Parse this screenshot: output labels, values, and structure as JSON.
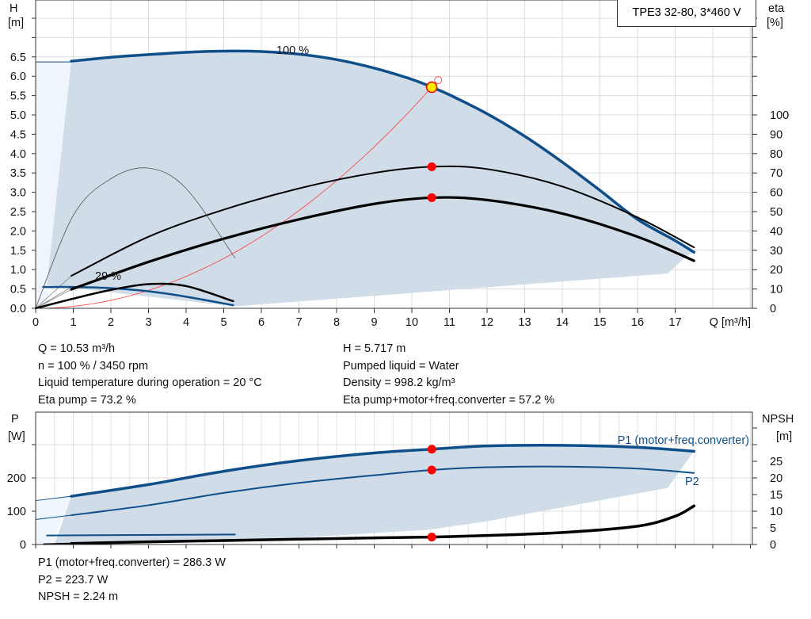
{
  "chart_data": [
    {
      "type": "line",
      "title": "TPE3 32-80, 3*460 V",
      "xlabel": "Q [m³/h]",
      "ylabel_left": "H",
      "ylabel_left_unit": "[m]",
      "ylabel_right": "eta",
      "ylabel_right_unit": "[%]",
      "xlim": [
        0,
        19
      ],
      "ylim_left": [
        0,
        8
      ],
      "ylim_right": [
        0,
        163
      ],
      "x_ticks": [
        "0",
        "1",
        "2",
        "3",
        "4",
        "5",
        "6",
        "7",
        "8",
        "9",
        "10",
        "11",
        "12",
        "13",
        "14",
        "15",
        "16",
        "17"
      ],
      "y_left_ticks": [
        "0.0",
        "0.5",
        "1.0",
        "1.5",
        "2.0",
        "2.5",
        "3.0",
        "3.5",
        "4.0",
        "4.5",
        "5.0",
        "5.5",
        "6.0",
        "6.5"
      ],
      "y_right_ticks": [
        "0",
        "10",
        "20",
        "30",
        "40",
        "50",
        "60",
        "70",
        "80",
        "90",
        "100"
      ],
      "grid": true,
      "annotations": [
        "100 %",
        "29 %"
      ],
      "series": [
        {
          "name": "100 %",
          "axis": "H",
          "color": "#0e4f8a",
          "x": [
            0.95,
            2,
            3,
            4,
            5,
            6,
            7,
            8,
            9,
            10,
            10.53,
            11,
            12,
            13,
            14,
            15,
            16,
            17,
            17.5
          ],
          "y": [
            6.39,
            6.49,
            6.56,
            6.62,
            6.65,
            6.64,
            6.57,
            6.43,
            6.21,
            5.92,
            5.717,
            5.52,
            5.03,
            4.45,
            3.78,
            3.05,
            2.3,
            1.75,
            1.45
          ]
        },
        {
          "name": "29 %",
          "axis": "H",
          "color": "#0e4f8a",
          "x": [
            0.2,
            1,
            2,
            3,
            4,
            5.25
          ],
          "y": [
            0.55,
            0.55,
            0.52,
            0.44,
            0.3,
            0.08
          ]
        },
        {
          "axis": "eta",
          "color": "#000",
          "x": [
            0.95,
            3,
            5,
            7,
            9,
            10.53,
            12,
            14,
            16,
            17.5
          ],
          "y": [
            16.8,
            37,
            51,
            62,
            70,
            73.2,
            72,
            63,
            47,
            31.5
          ]
        },
        {
          "axis": "eta",
          "color": "#000",
          "x": [
            0.95,
            3,
            5,
            7,
            9,
            10.53,
            12,
            14,
            16,
            17.5
          ],
          "y": [
            9.8,
            24,
            36,
            46,
            54,
            57.2,
            56,
            49,
            37,
            24.6
          ]
        },
        {
          "axis": "eta",
          "color": "#555",
          "x": [
            0,
            1,
            2,
            3,
            4,
            5.3
          ],
          "y": [
            0,
            48,
            67,
            72.5,
            62,
            26
          ]
        },
        {
          "axis": "eta",
          "color": "#000",
          "x": [
            0,
            1,
            2,
            3,
            4,
            5.25
          ],
          "y": [
            0,
            5,
            9.5,
            12.5,
            11.5,
            3.7
          ]
        }
      ],
      "system_curve": {
        "color": "#ff3b3b",
        "x_end": 10.7
      },
      "operating_point": {
        "Q": 10.53,
        "H": 5.717,
        "eta_pump": 73.2,
        "eta_total": 57.2
      }
    },
    {
      "type": "line",
      "xlabel": "",
      "ylabel_left": "P",
      "ylabel_left_unit": "[W]",
      "ylabel_right": "NPSH",
      "ylabel_right_unit": "[m]",
      "xlim": [
        0,
        19
      ],
      "ylim_left": [
        0,
        398
      ],
      "ylim_right": [
        0,
        39.8
      ],
      "y_left_ticks": [
        "0",
        "100",
        "200"
      ],
      "y_right_ticks": [
        "0",
        "5",
        "10",
        "15",
        "20",
        "25"
      ],
      "grid": true,
      "series": [
        {
          "name": "P1 (motor+freq.converter)",
          "axis": "P",
          "color": "#0e4f8a",
          "x": [
            0.95,
            3,
            5,
            7,
            9,
            10.53,
            12,
            14,
            16,
            17.5
          ],
          "y": [
            145,
            180,
            220,
            252,
            275,
            286.3,
            296,
            298,
            292,
            280
          ]
        },
        {
          "name": "P2",
          "axis": "P",
          "color": "#0e4f8a",
          "x": [
            0.95,
            3,
            5,
            7,
            9,
            10.53,
            12,
            14,
            16,
            17.5
          ],
          "y": [
            88,
            118,
            155,
            185,
            208,
            223.7,
            232,
            234,
            228,
            215
          ]
        },
        {
          "axis": "P",
          "color": "#0e4f8a",
          "x": [
            0.3,
            5.3
          ],
          "y": [
            27,
            30
          ]
        },
        {
          "name": "NPSH",
          "axis": "NPSH",
          "color": "#000",
          "x": [
            0.95,
            3,
            5,
            7,
            9,
            10.53,
            12,
            14,
            16,
            17,
            17.5
          ],
          "y": [
            0.3,
            0.8,
            1.2,
            1.6,
            2,
            2.24,
            2.7,
            3.6,
            5.5,
            8.5,
            11.6
          ]
        }
      ],
      "operating_point": {
        "P1": 286.3,
        "P2": 223.7,
        "NPSH": 2.24
      }
    }
  ],
  "legend_box": "TPE3 32-80, 3*460 V",
  "info_top": {
    "left": [
      "Q = 10.53 m³/h",
      "n = 100 % / 3450 rpm",
      "Liquid temperature during operation = 20 °C",
      "Eta pump = 73.2 %"
    ],
    "right": [
      "H = 5.717 m",
      "Pumped liquid = Water",
      "Density = 998.2 kg/m³",
      "Eta pump+motor+freq.converter = 57.2 %"
    ]
  },
  "info_bottom": [
    "P1 (motor+freq.converter) = 286.3 W",
    "P2 = 223.7 W",
    "NPSH = 2.24 m"
  ]
}
